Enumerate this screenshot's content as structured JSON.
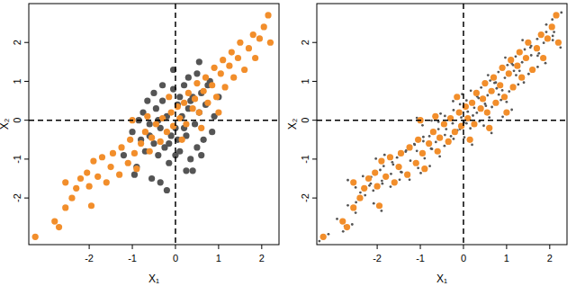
{
  "chart_data": [
    {
      "type": "scatter",
      "x_label": "X₁",
      "y_label": "X₂",
      "xlim": [
        -3.4,
        2.4
      ],
      "ylim": [
        -3.2,
        3.0
      ],
      "xticks": [
        -2,
        -1,
        0,
        1,
        2
      ],
      "yticks": [
        -2,
        -1,
        0,
        1,
        2
      ],
      "vlines": [
        0
      ],
      "hlines": [
        0
      ],
      "series": [
        {
          "color": "#555555",
          "marker": "circle",
          "x": [
            -1.2,
            -1.0,
            -0.9,
            -0.8,
            -0.75,
            -0.7,
            -0.6,
            -0.55,
            -0.5,
            -0.45,
            -0.4,
            -0.35,
            -0.3,
            -0.25,
            -0.2,
            -0.15,
            -0.1,
            -0.05,
            0.0,
            0.05,
            0.1,
            0.15,
            0.2,
            0.25,
            0.3,
            0.35,
            0.4,
            0.45,
            0.5,
            0.55,
            0.6,
            0.65,
            0.7,
            0.8,
            0.9,
            1.0,
            -0.95,
            -0.65,
            -0.35,
            -0.05,
            0.25,
            0.55,
            0.85,
            -0.85,
            -0.5,
            -0.15,
            0.2,
            0.5,
            0.75,
            -0.3,
            0.0,
            0.3,
            0.6,
            -0.6,
            -0.2,
            0.1,
            0.4,
            0.05,
            -0.4,
            0.35
          ],
          "values": [
            -0.9,
            -0.3,
            -1.2,
            -0.5,
            0.2,
            -0.8,
            -0.1,
            -1.5,
            -0.6,
            0.3,
            -0.9,
            -0.2,
            0.5,
            -0.7,
            0.1,
            -1.1,
            -0.4,
            0.8,
            -0.2,
            0.4,
            -0.8,
            0.1,
            0.9,
            -0.4,
            0.3,
            -1.0,
            0.6,
            -0.1,
            1.2,
            0.2,
            0.7,
            -0.5,
            0.4,
            1.0,
            0.1,
            0.6,
            -1.4,
            0.5,
            -1.6,
            1.3,
            -1.3,
            1.5,
            -0.3,
            0.0,
            0.7,
            -0.6,
            -0.2,
            -0.7,
            0.9,
            0.9,
            -0.9,
            1.1,
            -0.9,
            -0.4,
            -1.8,
            0.6,
            -1.3,
            -0.5,
            0.0,
            0.5
          ]
        },
        {
          "color": "#f28e2b",
          "marker": "circle",
          "x": [
            -3.25,
            -2.8,
            -2.7,
            -2.55,
            -2.4,
            -2.55,
            -2.3,
            -2.2,
            -2.0,
            -1.95,
            -2.05,
            -1.9,
            -1.8,
            -1.7,
            -1.6,
            -1.5,
            -1.45,
            -1.3,
            -1.25,
            -1.1,
            -1.05,
            -0.95,
            -0.9,
            -0.8,
            -0.7,
            -0.6,
            -0.55,
            -0.45,
            -0.35,
            -0.3,
            -0.2,
            -0.1,
            -0.05,
            0.05,
            0.1,
            0.2,
            0.25,
            0.3,
            0.4,
            0.45,
            0.5,
            0.55,
            0.65,
            0.7,
            0.75,
            0.85,
            0.9,
            0.95,
            1.05,
            1.1,
            1.15,
            1.25,
            1.3,
            1.35,
            1.45,
            1.5,
            1.6,
            1.7,
            1.8,
            1.85,
            1.95,
            2.05,
            2.15,
            2.2,
            -0.15,
            0.15,
            -0.65,
            0.6,
            1.0,
            -1.0
          ],
          "values": [
            -3.0,
            -2.6,
            -2.75,
            -2.25,
            -2.0,
            -1.6,
            -1.75,
            -1.5,
            -1.7,
            -2.2,
            -1.35,
            -1.05,
            -1.45,
            -0.95,
            -1.6,
            -1.2,
            -0.85,
            -1.4,
            -0.7,
            -1.1,
            -0.5,
            -0.85,
            -1.25,
            -0.6,
            -0.3,
            -0.8,
            -0.45,
            -0.1,
            -0.55,
            0.05,
            -0.3,
            0.2,
            -0.15,
            0.35,
            0.05,
            0.45,
            -0.1,
            0.7,
            0.3,
            0.55,
            0.95,
            0.2,
            0.75,
            1.1,
            0.45,
            0.9,
            1.35,
            0.6,
            1.2,
            1.55,
            0.85,
            1.4,
            1.75,
            1.1,
            1.6,
            2.0,
            1.3,
            1.85,
            2.2,
            1.6,
            2.1,
            2.4,
            2.7,
            2.0,
            0.6,
            -0.5,
            0.1,
            -0.2,
            0.2,
            0.0
          ]
        }
      ]
    },
    {
      "type": "scatter",
      "x_label": "X₁",
      "y_label": "X₂",
      "xlim": [
        -3.4,
        2.4
      ],
      "ylim": [
        -3.2,
        3.0
      ],
      "xticks": [
        -2,
        -1,
        0,
        1,
        2
      ],
      "yticks": [
        -2,
        -1,
        0,
        1,
        2
      ],
      "vlines": [
        0
      ],
      "hlines": [
        0
      ],
      "series": [
        {
          "color": "#555555",
          "marker": "dot",
          "x": [
            -3.13,
            -3.34,
            -2.75,
            -2.93,
            -2.58,
            -2.79,
            -2.5,
            -2.68,
            -2.28,
            -2.49,
            -2.5,
            -2.68,
            -2.18,
            -2.39,
            -2.15,
            -2.33,
            -1.88,
            -2.09,
            -1.9,
            -2.08,
            -1.93,
            -2.14,
            -1.85,
            -2.03,
            -1.68,
            -1.89,
            -1.65,
            -1.83,
            -1.48,
            -1.69,
            -1.45,
            -1.63,
            -1.33,
            -1.54,
            -1.25,
            -1.43,
            -1.13,
            -1.34,
            -1.05,
            -1.23,
            -0.93,
            -1.14,
            -0.9,
            -1.08,
            -0.78,
            -0.99,
            -0.75,
            -0.93,
            -0.58,
            -0.79,
            -0.55,
            -0.73,
            -0.43,
            -0.64,
            -0.4,
            -0.58,
            -0.23,
            -0.44,
            -0.25,
            -0.43,
            -0.08,
            -0.29,
            -0.05,
            -0.23,
            0.07,
            -0.14,
            0.1,
            -0.08,
            0.22,
            0.01,
            0.25,
            0.07,
            0.37,
            0.16,
            0.35,
            0.17,
            0.52,
            0.31,
            0.5,
            0.32,
            0.62,
            0.41,
            0.6,
            0.42,
            0.77,
            0.56,
            0.75,
            0.57,
            0.87,
            0.66,
            0.9,
            0.72,
            1.02,
            0.81,
            1.0,
            0.82,
            1.17,
            0.96,
            1.15,
            0.97,
            1.27,
            1.06,
            1.3,
            1.12,
            1.42,
            1.21,
            1.4,
            1.22,
            1.57,
            1.36,
            1.55,
            1.37,
            1.72,
            1.51,
            1.75,
            1.57,
            1.92,
            1.71,
            1.9,
            1.72,
            2.07,
            1.86,
            2.1,
            1.92,
            2.27,
            2.06,
            2.25,
            2.07,
            -0.03,
            -0.24,
            0.2,
            0.02,
            -0.53,
            -0.74,
            0.65,
            0.47,
            1.12,
            0.91,
            -0.95,
            -1.08
          ],
          "values": [
            -2.93,
            -3.11,
            -2.73,
            -2.54,
            -2.68,
            -2.86,
            -2.38,
            -2.19,
            -1.93,
            -2.11,
            -1.73,
            -1.54,
            -1.68,
            -1.86,
            -1.63,
            -1.44,
            -1.63,
            -1.81,
            -2.33,
            -2.14,
            -1.28,
            -1.46,
            -1.18,
            -0.99,
            -1.38,
            -1.56,
            -1.08,
            -0.89,
            -1.53,
            -1.71,
            -1.33,
            -1.14,
            -0.78,
            -0.96,
            -1.53,
            -1.34,
            -0.63,
            -0.81,
            -1.23,
            -1.04,
            -0.43,
            -0.61,
            -0.98,
            -0.79,
            -1.18,
            -1.36,
            -0.73,
            -0.54,
            -0.23,
            -0.41,
            -0.93,
            -0.74,
            -0.38,
            -0.56,
            -0.23,
            -0.04,
            -0.48,
            -0.66,
            -0.08,
            0.11,
            -0.23,
            -0.41,
            0.07,
            0.26,
            -0.08,
            -0.26,
            0.22,
            0.41,
            0.12,
            -0.06,
            0.32,
            0.51,
            -0.03,
            -0.21,
            0.57,
            0.76,
            0.37,
            0.19,
            0.42,
            0.61,
            1.02,
            0.84,
            0.07,
            0.26,
            0.82,
            0.64,
            0.97,
            1.16,
            0.52,
            0.34,
            0.77,
            0.96,
            1.42,
            1.24,
            0.47,
            0.66,
            1.27,
            1.09,
            1.42,
            1.61,
            0.92,
            0.74,
            1.27,
            1.46,
            1.82,
            1.64,
            0.97,
            1.16,
            1.67,
            1.49,
            1.87,
            2.06,
            1.37,
            1.19,
            1.72,
            1.91,
            2.27,
            2.09,
            1.47,
            1.66,
            2.17,
            1.99,
            2.27,
            2.46,
            2.77,
            2.59,
            1.87,
            2.06,
            0.67,
            0.49,
            -0.63,
            -0.44,
            0.17,
            -0.01,
            -0.33,
            -0.14,
            0.27,
            0.09,
            -0.13,
            0.06
          ]
        },
        {
          "color": "#f28e2b",
          "marker": "circle",
          "x": [
            -3.25,
            -2.8,
            -2.7,
            -2.55,
            -2.4,
            -2.55,
            -2.3,
            -2.2,
            -2.0,
            -1.95,
            -2.05,
            -1.9,
            -1.8,
            -1.7,
            -1.6,
            -1.5,
            -1.45,
            -1.3,
            -1.25,
            -1.1,
            -1.05,
            -0.95,
            -0.9,
            -0.8,
            -0.7,
            -0.6,
            -0.55,
            -0.45,
            -0.35,
            -0.3,
            -0.2,
            -0.1,
            -0.05,
            0.05,
            0.1,
            0.2,
            0.25,
            0.3,
            0.4,
            0.45,
            0.5,
            0.55,
            0.65,
            0.7,
            0.75,
            0.85,
            0.9,
            0.95,
            1.05,
            1.1,
            1.15,
            1.25,
            1.3,
            1.35,
            1.45,
            1.5,
            1.6,
            1.7,
            1.8,
            1.85,
            1.95,
            2.05,
            2.15,
            2.2,
            -0.15,
            0.15,
            -0.65,
            0.6,
            1.0,
            -1.0
          ],
          "values": [
            -3.0,
            -2.6,
            -2.75,
            -2.25,
            -2.0,
            -1.6,
            -1.75,
            -1.5,
            -1.7,
            -2.2,
            -1.35,
            -1.05,
            -1.45,
            -0.95,
            -1.6,
            -1.2,
            -0.85,
            -1.4,
            -0.7,
            -1.1,
            -0.5,
            -0.85,
            -1.25,
            -0.6,
            -0.3,
            -0.8,
            -0.45,
            -0.1,
            -0.55,
            0.05,
            -0.3,
            0.2,
            -0.15,
            0.35,
            0.05,
            0.45,
            -0.1,
            0.7,
            0.3,
            0.55,
            0.95,
            0.2,
            0.75,
            1.1,
            0.45,
            0.9,
            1.35,
            0.6,
            1.2,
            1.55,
            0.85,
            1.4,
            1.75,
            1.1,
            1.6,
            2.0,
            1.3,
            1.85,
            2.2,
            1.6,
            2.1,
            2.4,
            2.7,
            2.0,
            0.6,
            -0.5,
            0.1,
            -0.2,
            0.2,
            0.0
          ]
        }
      ]
    }
  ]
}
